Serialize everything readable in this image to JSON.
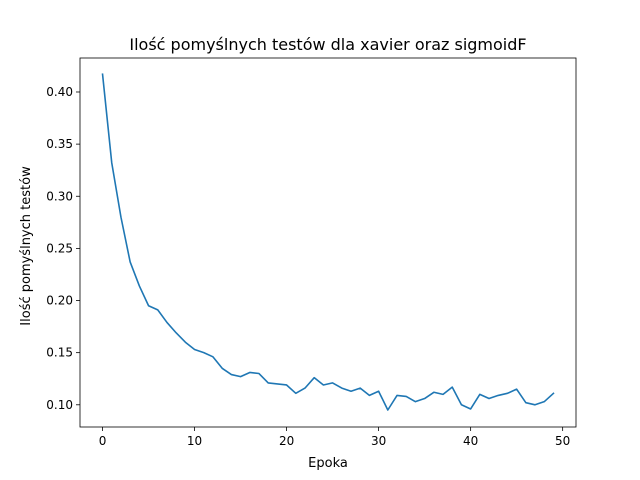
{
  "chart_data": {
    "type": "line",
    "title": "Ilość pomyślnych testów dla xavier oraz sigmoidF",
    "xlabel": "Epoka",
    "ylabel": "Ilość pomyślnych testów",
    "xlim": [
      -2.45,
      51.45
    ],
    "ylim": [
      0.0787,
      0.4326
    ],
    "grid": false,
    "x_ticks": [
      0,
      10,
      20,
      30,
      40,
      50
    ],
    "x_tick_labels": [
      "0",
      "10",
      "20",
      "30",
      "40",
      "50"
    ],
    "y_ticks": [
      0.1,
      0.15,
      0.2,
      0.25,
      0.3,
      0.35,
      0.4
    ],
    "y_tick_labels": [
      "0.10",
      "0.15",
      "0.20",
      "0.25",
      "0.30",
      "0.35",
      "0.40"
    ],
    "series": [
      {
        "color": "#1f77b4",
        "x": [
          0,
          1,
          2,
          3,
          4,
          5,
          6,
          7,
          8,
          9,
          10,
          11,
          12,
          13,
          14,
          15,
          16,
          17,
          18,
          19,
          20,
          21,
          22,
          23,
          24,
          25,
          26,
          27,
          28,
          29,
          30,
          31,
          32,
          33,
          34,
          35,
          36,
          37,
          38,
          39,
          40,
          41,
          42,
          43,
          44,
          45,
          46,
          47,
          48,
          49
        ],
        "values": [
          0.417,
          0.332,
          0.28,
          0.237,
          0.214,
          0.195,
          0.191,
          0.179,
          0.169,
          0.16,
          0.153,
          0.15,
          0.146,
          0.135,
          0.129,
          0.127,
          0.131,
          0.13,
          0.121,
          0.12,
          0.119,
          0.111,
          0.116,
          0.126,
          0.119,
          0.121,
          0.116,
          0.113,
          0.116,
          0.109,
          0.113,
          0.095,
          0.109,
          0.108,
          0.103,
          0.106,
          0.112,
          0.11,
          0.117,
          0.1,
          0.096,
          0.11,
          0.106,
          0.109,
          0.111,
          0.115,
          0.102,
          0.1,
          0.103,
          0.111
        ]
      }
    ]
  }
}
